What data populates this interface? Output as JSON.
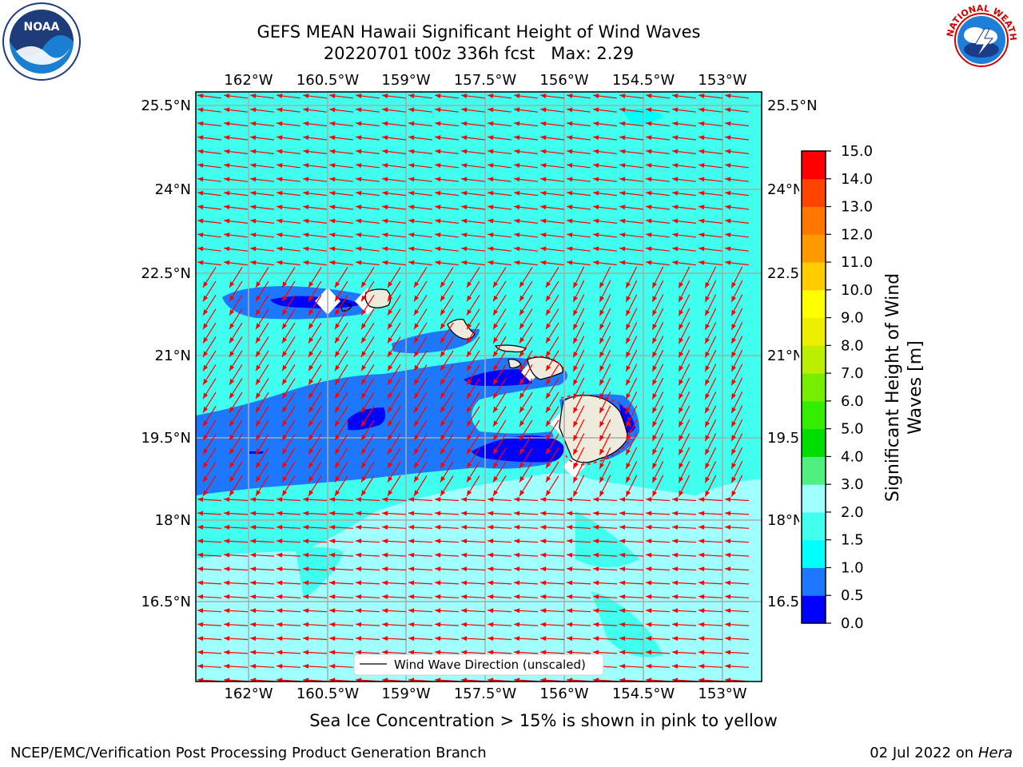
{
  "title": {
    "line1": "GEFS MEAN Hawaii Significant Height of Wind Waves",
    "line2": "20220701 t00z 336h fcst   Max: 2.29"
  },
  "map": {
    "lon_ticks": [
      "162°W",
      "160.5°W",
      "159°W",
      "157.5°W",
      "156°W",
      "154.5°W",
      "153°W"
    ],
    "lat_ticks": [
      "25.5°N",
      "24°N",
      "22.5°N",
      "21°N",
      "19.5°N",
      "18°N",
      "16.5°N"
    ],
    "legend_label": "Wind Wave Direction (unscaled)",
    "arrow_color": "#ff0000"
  },
  "colorbar": {
    "label_line1": "Significant Height of Wind",
    "label_line2": "Waves [m]",
    "ticks": [
      "0.0",
      "0.5",
      "1.0",
      "1.5",
      "2.0",
      "3.0",
      "4.0",
      "5.0",
      "6.0",
      "7.0",
      "8.0",
      "9.0",
      "10.0",
      "11.0",
      "12.0",
      "13.0",
      "14.0",
      "15.0"
    ],
    "colors": [
      "#0000ff",
      "#1e78ff",
      "#00ffff",
      "#40ffee",
      "#a0ffff",
      "#50f080",
      "#00dd00",
      "#33ee00",
      "#77ee00",
      "#bbee00",
      "#eeee00",
      "#ffff00",
      "#ffcc00",
      "#ff9900",
      "#ff7700",
      "#ff4400",
      "#ff0000"
    ]
  },
  "sea_ice_note": "Sea Ice Concentration > 15% is shown in pink to yellow",
  "footer": {
    "left": "NCEP/EMC/Verification Post Processing Product Generation Branch",
    "right_prefix": "02 Jul 2022 on ",
    "right_machine": "Hera"
  },
  "logos": {
    "noaa_text": "NOAA",
    "nws_text": "NATIONAL WEATHER SERVICE"
  }
}
